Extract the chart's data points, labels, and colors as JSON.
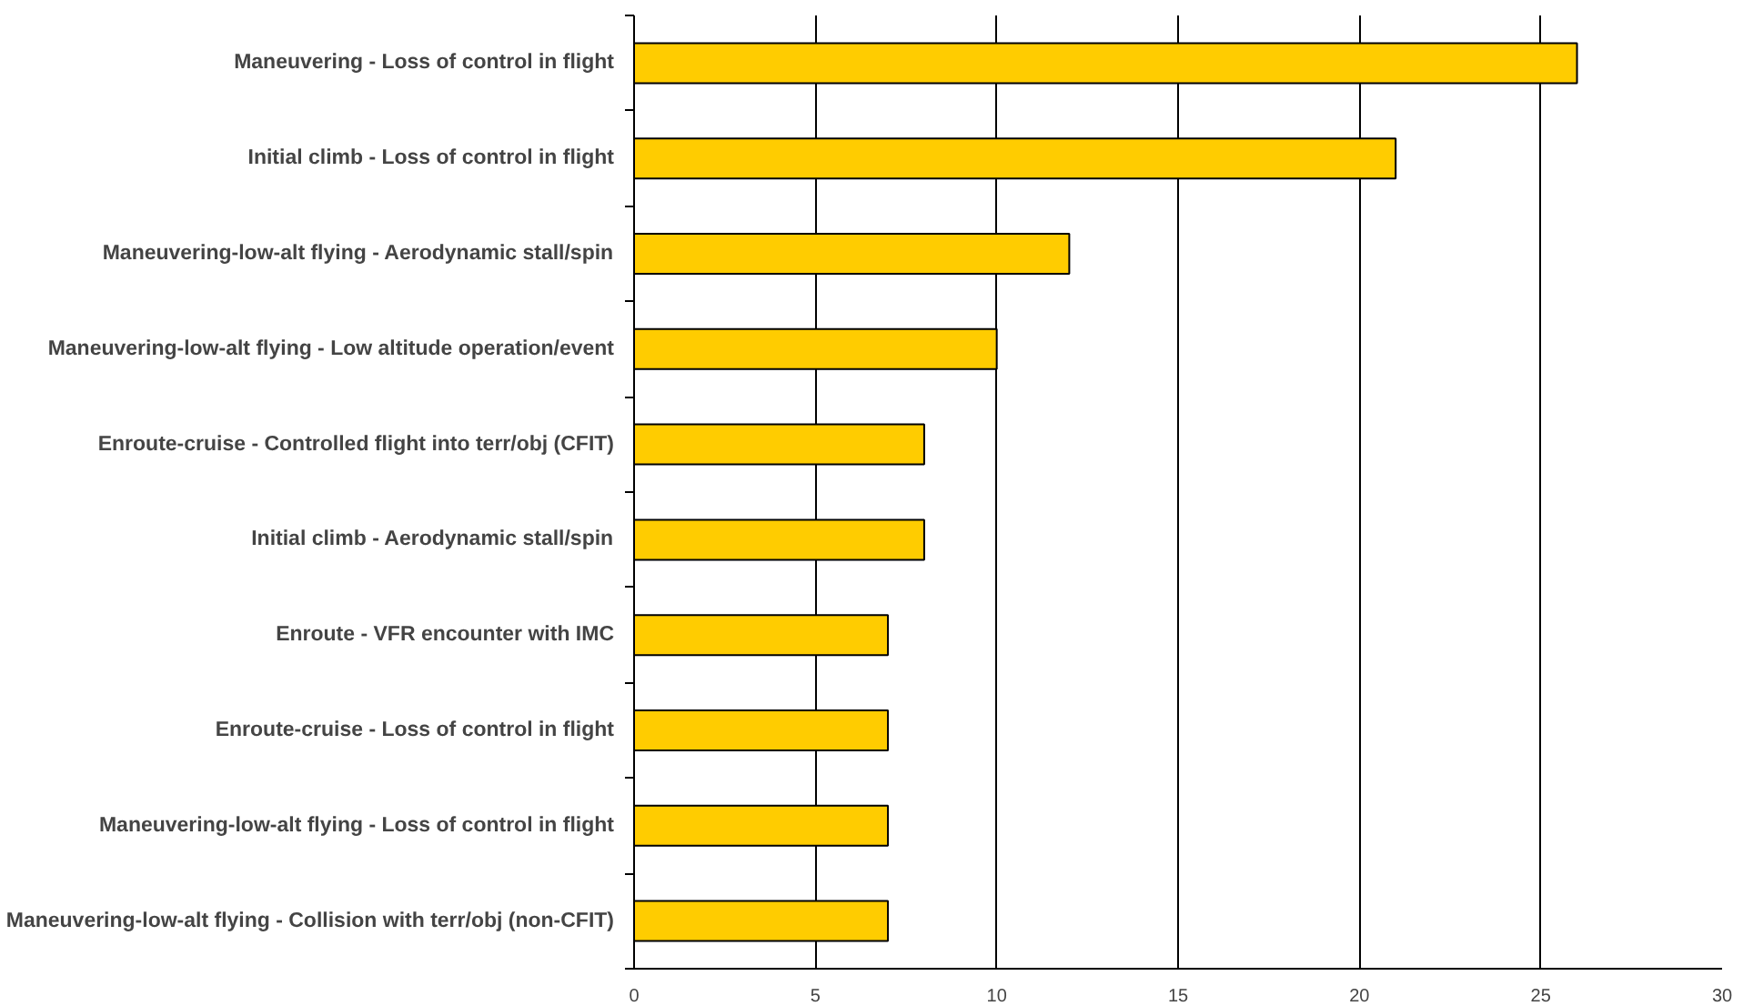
{
  "chart_data": {
    "type": "bar",
    "orientation": "horizontal",
    "categories": [
      "Maneuvering - Loss of control in flight",
      "Initial climb - Loss of control in flight",
      "Maneuvering-low-alt flying - Aerodynamic stall/spin",
      "Maneuvering-low-alt flying - Low altitude operation/event",
      "Enroute-cruise - Controlled flight into terr/obj (CFIT)",
      "Initial climb - Aerodynamic stall/spin",
      "Enroute - VFR encounter with IMC",
      "Enroute-cruise - Loss of control in flight",
      "Maneuvering-low-alt flying - Loss of control in flight",
      "Maneuvering-low-alt flying - Collision with terr/obj (non-CFIT)"
    ],
    "values": [
      26,
      21,
      12,
      10,
      8,
      8,
      7,
      7,
      7,
      7
    ],
    "color": "#ffcc00",
    "xlim": [
      0,
      30
    ],
    "xticks": [
      0,
      5,
      10,
      15,
      20,
      25,
      30
    ],
    "grid": "x"
  }
}
